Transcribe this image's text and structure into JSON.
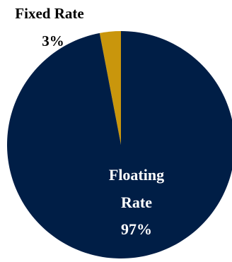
{
  "chart_data": {
    "type": "pie",
    "slices": [
      {
        "label_lines": [
          "Fixed Rate"
        ],
        "value_text": "3%",
        "value": 3,
        "color": "#C9960C"
      },
      {
        "label_lines": [
          "Floating",
          "Rate"
        ],
        "value_text": "97%",
        "value": 97,
        "color": "#001E46"
      }
    ],
    "label_colors": {
      "outside": "#000000",
      "inside": "#FFFFFF"
    }
  }
}
